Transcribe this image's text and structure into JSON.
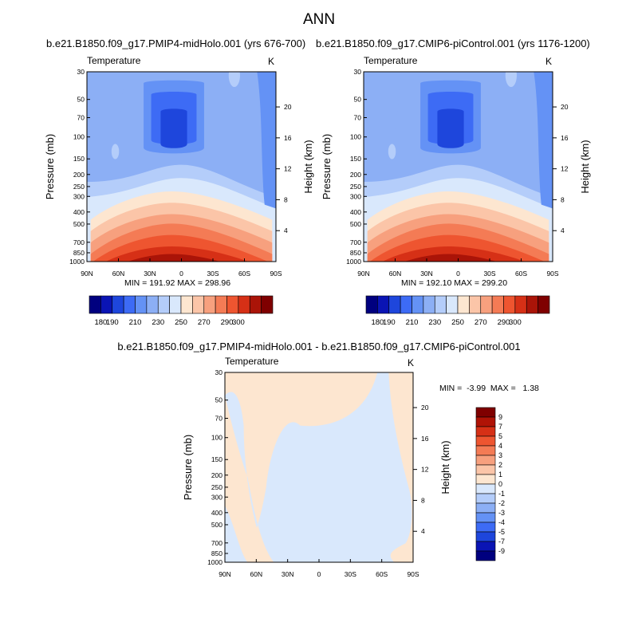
{
  "figure_title": "ANN",
  "panels": [
    {
      "case_title": "b.e21.B1850.f09_g17.PMIP4-midHolo.001 (yrs 676-700)",
      "variable": "Temperature",
      "units": "K",
      "min_max": "MIN = 191.92  MAX = 298.96"
    },
    {
      "case_title": "b.e21.B1850.f09_g17.CMIP6-piControl.001 (yrs 1176-1200)",
      "variable": "Temperature",
      "units": "K",
      "min_max": "MIN = 192.10  MAX = 299.20"
    },
    {
      "case_title": "b.e21.B1850.f09_g17.PMIP4-midHolo.001 - b.e21.B1850.f09_g17.CMIP6-piControl.001",
      "variable": "Temperature",
      "units": "K",
      "min_max": "MIN =  -3.99  MAX =   1.38"
    }
  ],
  "chart_data": [
    {
      "type": "heatmap",
      "title": "b.e21.B1850.f09_g17.PMIP4-midHolo.001 (yrs 676-700)",
      "variable": "Temperature",
      "units": "K",
      "xlabel": "",
      "ylabel": "Pressure (mb)",
      "y2label": "Height (km)",
      "x_ticks": [
        "90N",
        "60N",
        "30N",
        "0",
        "30S",
        "60S",
        "90S"
      ],
      "y_ticks": [
        "30",
        "50",
        "70",
        "100",
        "150",
        "200",
        "250",
        "300",
        "400",
        "500",
        "700",
        "850",
        "1000"
      ],
      "y2_ticks": [
        "20",
        "16",
        "12",
        "8",
        "4"
      ],
      "y_scale": "log",
      "ylim": [
        1000,
        30
      ],
      "xlim": [
        90,
        -90
      ],
      "min": 191.92,
      "max": 298.96,
      "colorbar_ticks": [
        "180",
        "190",
        "210",
        "230",
        "250",
        "270",
        "290",
        "300"
      ],
      "colorbar_levels": [
        180,
        190,
        200,
        210,
        220,
        230,
        240,
        250,
        260,
        270,
        280,
        290,
        300
      ],
      "colorbar_colors": [
        "#00007f",
        "#0a14b4",
        "#1e46dc",
        "#3d6bf5",
        "#6492f5",
        "#8caff5",
        "#b4cdfa",
        "#d9e8fc",
        "#fde6d0",
        "#fbc5a8",
        "#f7a07e",
        "#f47b55",
        "#ee5530",
        "#d63016",
        "#aa1408",
        "#7f0000"
      ]
    },
    {
      "type": "heatmap",
      "title": "b.e21.B1850.f09_g17.CMIP6-piControl.001 (yrs 1176-1200)",
      "variable": "Temperature",
      "units": "K",
      "xlabel": "",
      "ylabel": "Pressure (mb)",
      "y2label": "Height (km)",
      "x_ticks": [
        "90N",
        "60N",
        "30N",
        "0",
        "30S",
        "60S",
        "90S"
      ],
      "y_ticks": [
        "30",
        "50",
        "70",
        "100",
        "150",
        "200",
        "250",
        "300",
        "400",
        "500",
        "700",
        "850",
        "1000"
      ],
      "y2_ticks": [
        "20",
        "16",
        "12",
        "8",
        "4"
      ],
      "y_scale": "log",
      "ylim": [
        1000,
        30
      ],
      "xlim": [
        90,
        -90
      ],
      "min": 192.1,
      "max": 299.2,
      "colorbar_ticks": [
        "180",
        "190",
        "210",
        "230",
        "250",
        "270",
        "290",
        "300"
      ],
      "colorbar_levels": [
        180,
        190,
        200,
        210,
        220,
        230,
        240,
        250,
        260,
        270,
        280,
        290,
        300
      ],
      "colorbar_colors": [
        "#00007f",
        "#0a14b4",
        "#1e46dc",
        "#3d6bf5",
        "#6492f5",
        "#8caff5",
        "#b4cdfa",
        "#d9e8fc",
        "#fde6d0",
        "#fbc5a8",
        "#f7a07e",
        "#f47b55",
        "#ee5530",
        "#d63016",
        "#aa1408",
        "#7f0000"
      ]
    },
    {
      "type": "heatmap",
      "title": "b.e21.B1850.f09_g17.PMIP4-midHolo.001 - b.e21.B1850.f09_g17.CMIP6-piControl.001",
      "variable": "Temperature",
      "units": "K",
      "xlabel": "",
      "ylabel": "Pressure (mb)",
      "y2label": "Height (km)",
      "x_ticks": [
        "90N",
        "60N",
        "30N",
        "0",
        "30S",
        "60S",
        "90S"
      ],
      "y_ticks": [
        "30",
        "50",
        "70",
        "100",
        "150",
        "200",
        "250",
        "300",
        "400",
        "500",
        "700",
        "850",
        "1000"
      ],
      "y2_ticks": [
        "20",
        "16",
        "12",
        "8",
        "4"
      ],
      "y_scale": "log",
      "ylim": [
        1000,
        30
      ],
      "xlim": [
        90,
        -90
      ],
      "min": -3.99,
      "max": 1.38,
      "colorbar_ticks": [
        "9",
        "7",
        "5",
        "4",
        "3",
        "2",
        "1",
        "0",
        "-1",
        "-2",
        "-3",
        "-4",
        "-5",
        "-7",
        "-9"
      ],
      "colorbar_colors": [
        "#7f0000",
        "#b01306",
        "#d63016",
        "#ee5530",
        "#f47b55",
        "#f7a07e",
        "#fbc5a8",
        "#fde6d0",
        "#d9e8fc",
        "#b4cdfa",
        "#8caff5",
        "#6492f5",
        "#3d6bf5",
        "#1e46dc",
        "#0a14b4",
        "#00007f"
      ]
    }
  ]
}
